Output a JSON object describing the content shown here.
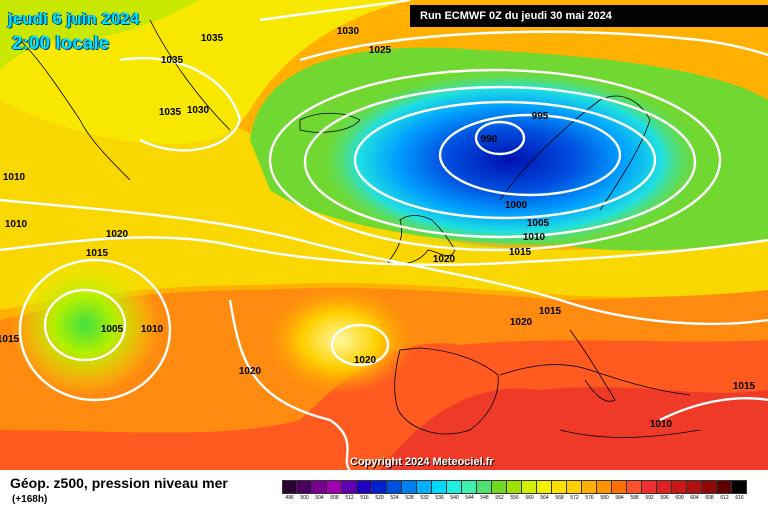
{
  "header": {
    "date": "jeudi 6 juin 2024",
    "time": "2:00 locale",
    "run": "Run ECMWF 0Z du jeudi 30 mai 2024"
  },
  "footer": {
    "title": "Géop. z500, pression niveau mer",
    "subtitle": "(+168h)",
    "copyright": "Copyright 2024 Meteociel.fr"
  },
  "scale": {
    "labels": [
      "496",
      "500",
      "504",
      "508",
      "512",
      "516",
      "520",
      "524",
      "528",
      "532",
      "536",
      "540",
      "544",
      "548",
      "552",
      "556",
      "560",
      "564",
      "568",
      "572",
      "576",
      "580",
      "584",
      "588",
      "592",
      "596",
      "600",
      "604",
      "608",
      "612",
      "616"
    ],
    "colors": [
      "#2a0030",
      "#4a0060",
      "#7a0090",
      "#a000b0",
      "#6000b0",
      "#2000c0",
      "#0020d0",
      "#0050e0",
      "#0080f0",
      "#00b0ff",
      "#00d8ff",
      "#20f0e0",
      "#40f0b0",
      "#50e070",
      "#70d820",
      "#a0e000",
      "#d0f000",
      "#f0f000",
      "#f8e000",
      "#ffd000",
      "#ffb000",
      "#ff9000",
      "#ff7000",
      "#ff5030",
      "#f03030",
      "#e02020",
      "#c81818",
      "#b01010",
      "#900808",
      "#600000",
      "#000000"
    ]
  },
  "isobars": [
    "1035",
    "1035",
    "1030",
    "1025",
    "1035",
    "1030",
    "1010",
    "1010",
    "1020",
    "1015",
    "1005",
    "1010",
    "1015",
    "1020",
    "995",
    "990",
    "1000",
    "1005",
    "1010",
    "1015",
    "1020",
    "1020",
    "1015",
    "1020",
    "1015",
    "1010"
  ]
}
